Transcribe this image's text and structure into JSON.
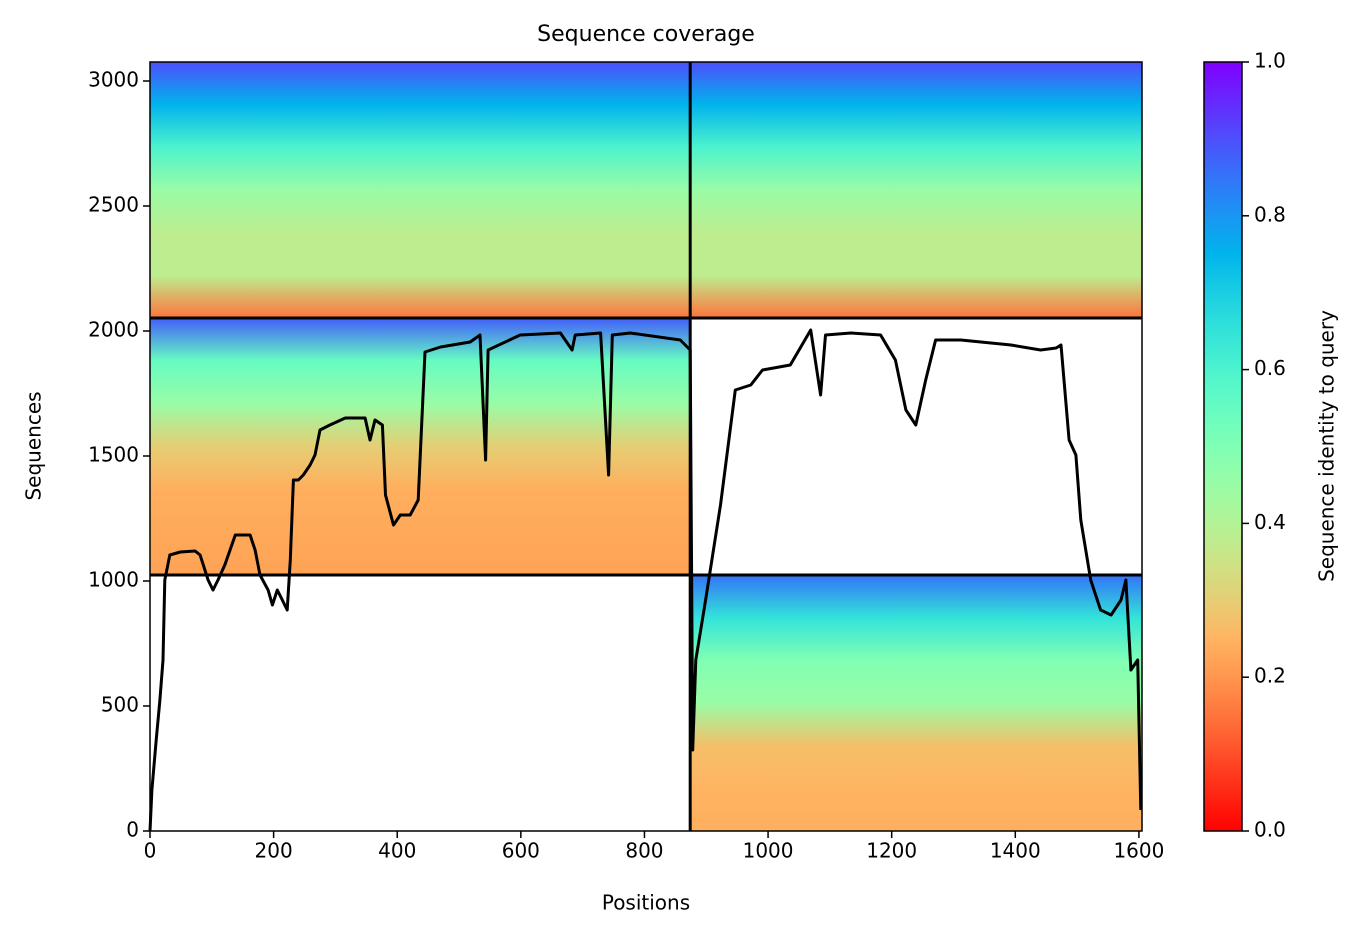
{
  "chart_data": {
    "type": "coverage",
    "title": "Sequence coverage",
    "x_label": "Positions",
    "y_label": "Sequences",
    "colorbar_label": "Sequence identity to query",
    "colormap": "rainbow_r",
    "xlim": [
      0,
      1605
    ],
    "ylim": [
      0,
      3076
    ],
    "xticks": [
      0,
      200,
      400,
      600,
      800,
      1000,
      1200,
      1400,
      1600
    ],
    "yticks": [
      0,
      500,
      1000,
      1500,
      2000,
      2500,
      3000
    ],
    "clim": [
      0,
      1
    ],
    "cticks": [
      {
        "value": 0,
        "label": "0.0"
      },
      0.2,
      0.4,
      0.6,
      0.8,
      {
        "value": 1,
        "label": "1.0"
      }
    ],
    "chain_breaks": {
      "x": [
        874
      ],
      "y": [
        1024,
        2052
      ]
    },
    "blocks": [
      {
        "x": [
          0,
          874
        ],
        "y": [
          2052,
          3076
        ],
        "identity": [
          0.15,
          0.38,
          0.38,
          0.45,
          0.6,
          0.75,
          0.9
        ]
      },
      {
        "x": [
          874,
          1605
        ],
        "y": [
          2052,
          3076
        ],
        "identity": [
          0.15,
          0.38,
          0.38,
          0.45,
          0.6,
          0.75,
          0.9
        ]
      },
      {
        "x": [
          0,
          874
        ],
        "y": [
          1024,
          2052
        ],
        "identity": [
          0.22,
          0.23,
          0.24,
          0.3,
          0.45,
          0.55,
          0.88
        ]
      },
      {
        "x": [
          874,
          1605
        ],
        "y": [
          0,
          1024
        ],
        "identity": [
          0.24,
          0.25,
          0.27,
          0.45,
          0.5,
          0.65,
          0.85
        ]
      }
    ],
    "coverage": {
      "color": "#000000",
      "x": [
        0,
        3,
        10,
        16,
        21,
        24,
        32,
        49,
        73,
        81,
        94,
        102,
        110,
        121,
        138,
        162,
        170,
        178,
        191,
        198,
        206,
        214,
        222,
        227,
        232,
        240,
        248,
        259,
        267,
        275,
        291,
        316,
        348,
        356,
        364,
        376,
        381,
        394,
        405,
        421,
        434,
        445,
        470,
        518,
        534,
        543,
        547,
        599,
        664,
        683,
        688,
        729,
        742,
        748,
        777,
        858,
        874,
        878,
        883,
        899,
        923,
        947,
        972,
        991,
        1036,
        1069,
        1085,
        1093,
        1134,
        1182,
        1206,
        1223,
        1239,
        1255,
        1271,
        1312,
        1393,
        1441,
        1466,
        1474,
        1487,
        1498,
        1506,
        1522,
        1538,
        1555,
        1571,
        1579,
        1587,
        1598,
        1603
      ],
      "values": [
        0,
        164,
        364,
        524,
        684,
        1004,
        1104,
        1116,
        1120,
        1104,
        1004,
        964,
        1004,
        1064,
        1184,
        1184,
        1124,
        1024,
        964,
        904,
        964,
        924,
        884,
        1084,
        1404,
        1404,
        1424,
        1464,
        1504,
        1604,
        1624,
        1652,
        1652,
        1564,
        1644,
        1624,
        1344,
        1224,
        1264,
        1264,
        1324,
        1916,
        1936,
        1956,
        1984,
        1484,
        1924,
        1984,
        1992,
        1924,
        1984,
        1992,
        1424,
        1984,
        1992,
        1964,
        1924,
        324,
        684,
        924,
        1304,
        1764,
        1784,
        1844,
        1864,
        2004,
        1744,
        1984,
        1992,
        1984,
        1884,
        1684,
        1624,
        1804,
        1964,
        1964,
        1944,
        1924,
        1932,
        1944,
        1564,
        1504,
        1244,
        1004,
        884,
        864,
        924,
        1004,
        644,
        684,
        84
      ]
    }
  }
}
